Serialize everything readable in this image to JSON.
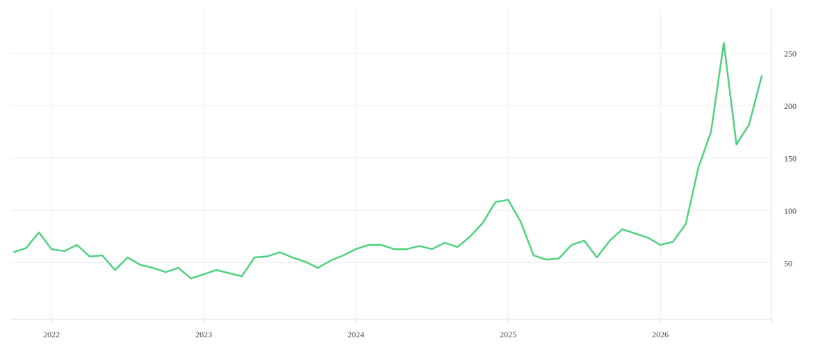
{
  "chart_data": {
    "type": "line",
    "x": [
      2021.75,
      2021.833,
      2021.917,
      2022,
      2022.083,
      2022.167,
      2022.25,
      2022.333,
      2022.417,
      2022.5,
      2022.583,
      2022.667,
      2022.75,
      2022.833,
      2022.917,
      2023,
      2023.083,
      2023.167,
      2023.25,
      2023.333,
      2023.417,
      2023.5,
      2023.583,
      2023.667,
      2023.75,
      2023.833,
      2023.917,
      2024,
      2024.083,
      2024.167,
      2024.25,
      2024.333,
      2024.417,
      2024.5,
      2024.583,
      2024.667,
      2024.75,
      2024.833,
      2024.917,
      2025,
      2025.083,
      2025.167,
      2025.25,
      2025.333,
      2025.417,
      2025.5,
      2025.583,
      2025.667,
      2025.75,
      2025.833,
      2025.917,
      2026,
      2026.083,
      2026.167,
      2026.25,
      2026.333,
      2026.417,
      2026.5,
      2026.583,
      2026.667
    ],
    "series": [
      {
        "color": "#4fd17f",
        "values": [
          60,
          64,
          79,
          63,
          61,
          67,
          56,
          57,
          43,
          55,
          48,
          45,
          41,
          45,
          35,
          39,
          43,
          40,
          37,
          55,
          56,
          60,
          55,
          51,
          45,
          52,
          57,
          63,
          67,
          67,
          63,
          63,
          66,
          63,
          69,
          65,
          75,
          88,
          108,
          110,
          89,
          57,
          53,
          54,
          67,
          71,
          55,
          71,
          82,
          78,
          74,
          67,
          70,
          87,
          141,
          175,
          260,
          163,
          182,
          229
        ]
      }
    ],
    "xlim": [
      2021.73,
      2026.73
    ],
    "xticks": [
      2022,
      2023,
      2024,
      2025,
      2026
    ],
    "ylim": [
      -4,
      293
    ],
    "yticks": [
      50,
      100,
      150,
      200,
      250
    ],
    "grid": true
  }
}
